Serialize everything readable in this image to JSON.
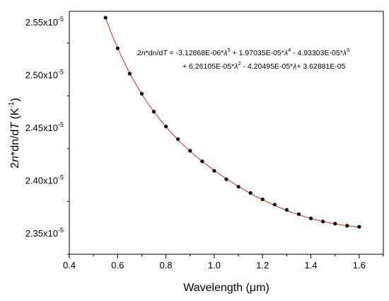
{
  "chart_data": {
    "type": "scatter",
    "title": "",
    "xlabel": "Wavelength (μm)",
    "ylabel": "2n*dn/dT (K⁻¹)",
    "xlim": [
      0.4,
      1.7
    ],
    "ylim": [
      2.33e-05,
      2.56e-05
    ],
    "x_ticks": [
      {
        "value": 0.4,
        "label": "0.4"
      },
      {
        "value": 0.6,
        "label": "0.6"
      },
      {
        "value": 0.8,
        "label": "0.8"
      },
      {
        "value": 1.0,
        "label": "1.0"
      },
      {
        "value": 1.2,
        "label": "1.2"
      },
      {
        "value": 1.4,
        "label": "1.4"
      },
      {
        "value": 1.6,
        "label": "1.6"
      }
    ],
    "y_ticks": [
      {
        "value": 2.35e-05,
        "label": "2.35x10",
        "exp": "-5"
      },
      {
        "value": 2.4e-05,
        "label": "2.40x10",
        "exp": "-5"
      },
      {
        "value": 2.45e-05,
        "label": "2.45x10",
        "exp": "-5"
      },
      {
        "value": 2.5e-05,
        "label": "2.50x10",
        "exp": "-5"
      },
      {
        "value": 2.55e-05,
        "label": "2.55x10",
        "exp": "-5"
      }
    ],
    "grid": false,
    "series": [
      {
        "color": "#000000",
        "x": [
          0.55,
          0.6,
          0.65,
          0.7,
          0.75,
          0.8,
          0.85,
          0.9,
          0.95,
          1.0,
          1.05,
          1.1,
          1.15,
          1.2,
          1.25,
          1.3,
          1.35,
          1.4,
          1.45,
          1.5,
          1.55,
          1.6
        ],
        "y": [
          2.554e-05,
          2.525e-05,
          2.501e-05,
          2.482e-05,
          2.465e-05,
          2.451e-05,
          2.439e-05,
          2.428e-05,
          2.418e-05,
          2.409e-05,
          2.401e-05,
          2.394e-05,
          2.388e-05,
          2.382e-05,
          2.377e-05,
          2.372e-05,
          2.368e-05,
          2.364e-05,
          2.361e-05,
          2.359e-05,
          2.357e-05,
          2.356e-05
        ]
      }
    ],
    "fit": {
      "color": "#e0241b",
      "coefficients": [
        -3.12868e-06,
        1.97035e-05,
        -4.93303e-05,
        6.26105e-05,
        -4.20495e-05,
        3.62881e-05
      ]
    },
    "annotation": {
      "line1_lhs_a": "2",
      "line1_lhs_n": "n",
      "line1_lhs_b": "*dn/d",
      "line1_lhs_T": "T",
      "line1_rhs": " = -3.12868E-06*",
      "lambda": "λ",
      "sup5": "5",
      "t2": " + 1.97035E-05*",
      "sup4": "4",
      "t3": " - 4.93303E-05*",
      "sup3": "3",
      "l2a": "+ 6.26105E-05*",
      "sup2": "2",
      "l2b": " - 4.20495E-05*",
      "l2c": "+ 3.62881E-05"
    }
  }
}
